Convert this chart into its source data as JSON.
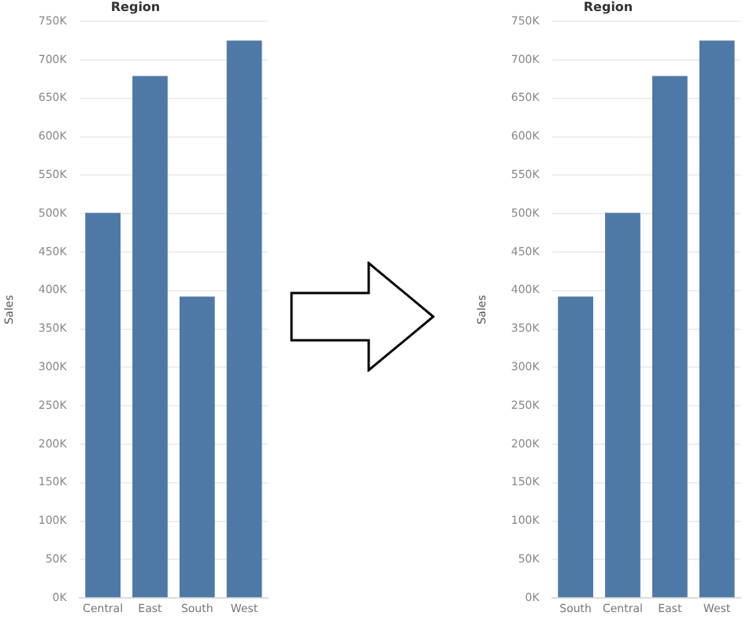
{
  "chart_data": [
    {
      "type": "bar",
      "title": "Region",
      "ylabel": "Sales",
      "categories": [
        "Central",
        "East",
        "South",
        "West"
      ],
      "values": [
        501000,
        679000,
        392000,
        725000
      ],
      "color": "#4e79a7",
      "ylim": [
        0,
        750000
      ],
      "yticks": [
        {
          "value": 0,
          "label": "0K"
        },
        {
          "value": 50000,
          "label": "50K"
        },
        {
          "value": 100000,
          "label": "100K"
        },
        {
          "value": 150000,
          "label": "150K"
        },
        {
          "value": 200000,
          "label": "200K"
        },
        {
          "value": 250000,
          "label": "250K"
        },
        {
          "value": 300000,
          "label": "300K"
        },
        {
          "value": 350000,
          "label": "350K"
        },
        {
          "value": 400000,
          "label": "400K"
        },
        {
          "value": 450000,
          "label": "450K"
        },
        {
          "value": 500000,
          "label": "500K"
        },
        {
          "value": 550000,
          "label": "550K"
        },
        {
          "value": 600000,
          "label": "600K"
        },
        {
          "value": 650000,
          "label": "650K"
        },
        {
          "value": 700000,
          "label": "700K"
        },
        {
          "value": 750000,
          "label": "750K"
        }
      ],
      "grid": "y"
    },
    {
      "type": "bar",
      "title": "Region",
      "ylabel": "Sales",
      "categories": [
        "South",
        "Central",
        "East",
        "West"
      ],
      "values": [
        392000,
        501000,
        679000,
        725000
      ],
      "color": "#4e79a7",
      "ylim": [
        0,
        750000
      ],
      "yticks": [
        {
          "value": 0,
          "label": "0K"
        },
        {
          "value": 50000,
          "label": "50K"
        },
        {
          "value": 100000,
          "label": "100K"
        },
        {
          "value": 150000,
          "label": "150K"
        },
        {
          "value": 200000,
          "label": "200K"
        },
        {
          "value": 250000,
          "label": "250K"
        },
        {
          "value": 300000,
          "label": "300K"
        },
        {
          "value": 350000,
          "label": "350K"
        },
        {
          "value": 400000,
          "label": "400K"
        },
        {
          "value": 450000,
          "label": "450K"
        },
        {
          "value": 500000,
          "label": "500K"
        },
        {
          "value": 550000,
          "label": "550K"
        },
        {
          "value": 600000,
          "label": "600K"
        },
        {
          "value": 650000,
          "label": "650K"
        },
        {
          "value": 700000,
          "label": "700K"
        },
        {
          "value": 750000,
          "label": "750K"
        }
      ],
      "grid": "y"
    }
  ]
}
